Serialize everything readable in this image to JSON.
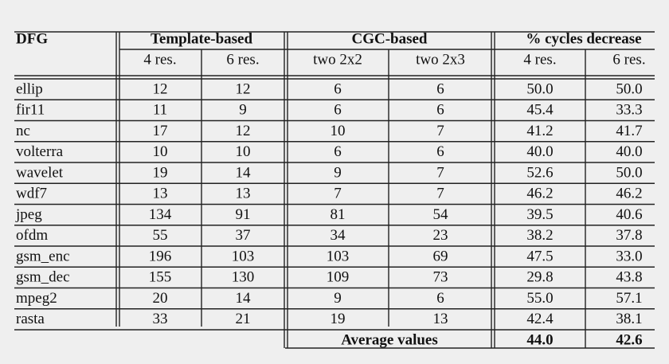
{
  "table": {
    "header": {
      "first": "DFG",
      "groups": [
        "Template-based",
        "CGC-based",
        "% cycles decrease"
      ],
      "subheaders": [
        "4 res.",
        "6 res.",
        "two 2x2",
        "two 2x3",
        "4 res.",
        "6 res."
      ]
    },
    "rows": [
      [
        "ellip",
        "12",
        "12",
        "6",
        "6",
        "50.0",
        "50.0"
      ],
      [
        "fir11",
        "11",
        "9",
        "6",
        "6",
        "45.4",
        "33.3"
      ],
      [
        "nc",
        "17",
        "12",
        "10",
        "7",
        "41.2",
        "41.7"
      ],
      [
        "volterra",
        "10",
        "10",
        "6",
        "6",
        "40.0",
        "40.0"
      ],
      [
        "wavelet",
        "19",
        "14",
        "9",
        "7",
        "52.6",
        "50.0"
      ],
      [
        "wdf7",
        "13",
        "13",
        "7",
        "7",
        "46.2",
        "46.2"
      ],
      [
        "jpeg",
        "134",
        "91",
        "81",
        "54",
        "39.5",
        "40.6"
      ],
      [
        "ofdm",
        "55",
        "37",
        "34",
        "23",
        "38.2",
        "37.8"
      ],
      [
        "gsm_enc",
        "196",
        "103",
        "103",
        "69",
        "47.5",
        "33.0"
      ],
      [
        "gsm_dec",
        "155",
        "130",
        "109",
        "73",
        "29.8",
        "43.8"
      ],
      [
        "mpeg2",
        "20",
        "14",
        "9",
        "6",
        "55.0",
        "57.1"
      ],
      [
        "rasta",
        "33",
        "21",
        "19",
        "13",
        "42.4",
        "38.1"
      ]
    ],
    "average": {
      "label": "Average values",
      "values": [
        "44.0",
        "42.6"
      ]
    }
  }
}
